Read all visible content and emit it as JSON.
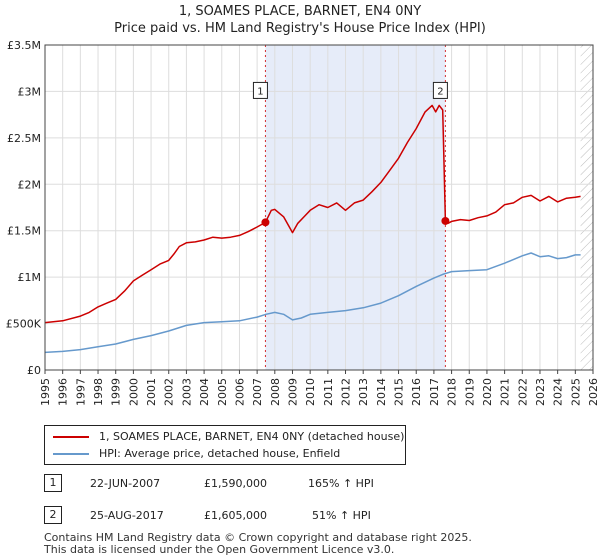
{
  "header": {
    "title": "1, SOAMES PLACE, BARNET, EN4 0NY",
    "subtitle": "Price paid vs. HM Land Registry's House Price Index (HPI)"
  },
  "chart_data": {
    "type": "line",
    "title": "1, SOAMES PLACE, BARNET, EN4 0NY",
    "subtitle": "Price paid vs. HM Land Registry's House Price Index (HPI)",
    "xlabel": "",
    "ylabel": "",
    "xlim": [
      1995,
      2026
    ],
    "ylim": [
      0,
      3500000
    ],
    "grid": true,
    "y_ticks": [
      0,
      500000,
      1000000,
      1500000,
      2000000,
      2500000,
      3000000,
      3500000
    ],
    "y_tick_labels": [
      "£0",
      "£500K",
      "£1M",
      "£1.5M",
      "£2M",
      "£2.5M",
      "£3M",
      "£3.5M"
    ],
    "x_ticks": [
      1995,
      1996,
      1997,
      1998,
      1999,
      2000,
      2001,
      2002,
      2003,
      2004,
      2005,
      2006,
      2007,
      2008,
      2009,
      2010,
      2011,
      2012,
      2013,
      2014,
      2015,
      2016,
      2017,
      2018,
      2019,
      2020,
      2021,
      2022,
      2023,
      2024,
      2025,
      2026
    ],
    "x_tick_labels": [
      "1995",
      "1996",
      "1997",
      "1998",
      "1999",
      "2000",
      "2001",
      "2002",
      "2003",
      "2004",
      "2005",
      "2006",
      "2007",
      "2008",
      "2009",
      "2010",
      "2011",
      "2012",
      "2013",
      "2014",
      "2015",
      "2016",
      "2017",
      "2018",
      "2019",
      "2020",
      "2021",
      "2022",
      "2023",
      "2024",
      "2025",
      "2026"
    ],
    "shaded_region": [
      2007.47,
      2017.65
    ],
    "future_hatch_from": 2025.3,
    "series": [
      {
        "name": "1, SOAMES PLACE, BARNET, EN4 0NY (detached house)",
        "color": "#cc0000",
        "x": [
          1995.0,
          1996.0,
          1997.0,
          1997.5,
          1998.0,
          1998.5,
          1999.0,
          1999.5,
          2000.0,
          2000.5,
          2001.0,
          2001.5,
          2002.0,
          2002.3,
          2002.6,
          2003.0,
          2003.5,
          2004.0,
          2004.5,
          2005.0,
          2005.5,
          2006.0,
          2006.5,
          2007.0,
          2007.47,
          2007.8,
          2008.0,
          2008.5,
          2009.0,
          2009.3,
          2009.7,
          2010.0,
          2010.5,
          2011.0,
          2011.5,
          2012.0,
          2012.5,
          2013.0,
          2013.5,
          2014.0,
          2014.5,
          2015.0,
          2015.5,
          2016.0,
          2016.5,
          2016.9,
          2017.1,
          2017.3,
          2017.5,
          2017.65,
          2017.8,
          2018.0,
          2018.5,
          2019.0,
          2019.5,
          2020.0,
          2020.5,
          2021.0,
          2021.5,
          2022.0,
          2022.5,
          2023.0,
          2023.5,
          2024.0,
          2024.5,
          2025.0,
          2025.3
        ],
        "values": [
          510000,
          530000,
          580000,
          620000,
          680000,
          720000,
          760000,
          850000,
          960000,
          1020000,
          1080000,
          1140000,
          1180000,
          1250000,
          1330000,
          1370000,
          1380000,
          1400000,
          1430000,
          1420000,
          1430000,
          1450000,
          1490000,
          1540000,
          1590000,
          1720000,
          1730000,
          1650000,
          1480000,
          1580000,
          1660000,
          1720000,
          1780000,
          1750000,
          1800000,
          1720000,
          1800000,
          1830000,
          1920000,
          2020000,
          2150000,
          2280000,
          2450000,
          2600000,
          2780000,
          2850000,
          2780000,
          2850000,
          2800000,
          1605000,
          1580000,
          1600000,
          1620000,
          1610000,
          1640000,
          1660000,
          1700000,
          1780000,
          1800000,
          1860000,
          1880000,
          1820000,
          1870000,
          1810000,
          1850000,
          1860000,
          1870000
        ]
      },
      {
        "name": "HPI: Average price, detached house, Enfield",
        "color": "#6699cc",
        "x": [
          1995.0,
          1996.0,
          1997.0,
          1998.0,
          1999.0,
          2000.0,
          2001.0,
          2002.0,
          2003.0,
          2004.0,
          2005.0,
          2006.0,
          2007.0,
          2007.5,
          2008.0,
          2008.5,
          2009.0,
          2009.5,
          2010.0,
          2011.0,
          2012.0,
          2013.0,
          2014.0,
          2015.0,
          2016.0,
          2017.0,
          2017.5,
          2018.0,
          2019.0,
          2020.0,
          2021.0,
          2022.0,
          2022.5,
          2023.0,
          2023.5,
          2024.0,
          2024.5,
          2025.0,
          2025.3
        ],
        "values": [
          190000,
          200000,
          220000,
          250000,
          280000,
          330000,
          370000,
          420000,
          480000,
          510000,
          520000,
          530000,
          570000,
          600000,
          620000,
          600000,
          540000,
          560000,
          600000,
          620000,
          640000,
          670000,
          720000,
          800000,
          900000,
          990000,
          1030000,
          1060000,
          1070000,
          1080000,
          1150000,
          1230000,
          1260000,
          1220000,
          1230000,
          1200000,
          1210000,
          1240000,
          1240000
        ]
      }
    ],
    "sale_markers": [
      {
        "label": "1",
        "x": 2007.47,
        "value": 1590000
      },
      {
        "label": "2",
        "x": 2017.65,
        "value": 1605000
      }
    ]
  },
  "legend": {
    "items": [
      {
        "label": "1, SOAMES PLACE, BARNET, EN4 0NY (detached house)",
        "color": "#cc0000"
      },
      {
        "label": "HPI: Average price, detached house, Enfield",
        "color": "#6699cc"
      }
    ]
  },
  "transactions": [
    {
      "num": "1",
      "date": "22-JUN-2007",
      "price": "£1,590,000",
      "hpi": "165% ↑ HPI"
    },
    {
      "num": "2",
      "date": "25-AUG-2017",
      "price": "£1,605,000",
      "hpi": "51% ↑ HPI"
    }
  ],
  "footer": {
    "line1": "Contains HM Land Registry data © Crown copyright and database right 2025.",
    "line2": "This data is licensed under the Open Government Licence v3.0."
  }
}
